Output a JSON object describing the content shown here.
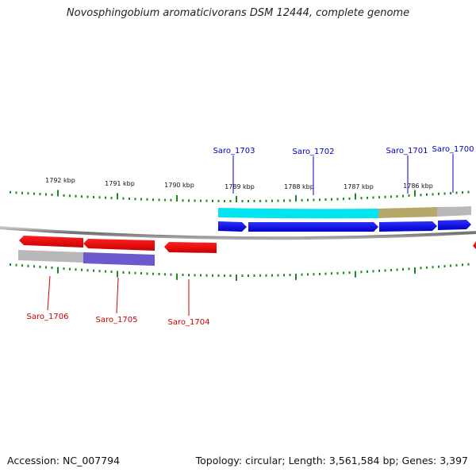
{
  "title": "Novosphingobium aromaticivorans DSM 12444, complete genome",
  "footer": {
    "accession_label": "Accession: NC_007794",
    "topology_label": "Topology: circular",
    "length_label": "Length: 3,561,584 bp",
    "genes_label": "Genes: 3,397"
  },
  "tick_labels": [
    {
      "kbp": 1792,
      "text": "1792 kbp"
    },
    {
      "kbp": 1791,
      "text": "1791 kbp"
    },
    {
      "kbp": 1790,
      "text": "1790 kbp"
    },
    {
      "kbp": 1789,
      "text": "1789 kbp"
    },
    {
      "kbp": 1788,
      "text": "1788 kbp"
    },
    {
      "kbp": 1787,
      "text": "1787 kbp"
    },
    {
      "kbp": 1786,
      "text": "1786 kbp"
    }
  ],
  "genes_forward": [
    {
      "name": "Saro_1703",
      "color": "#0000ee",
      "label_color": "#0000cc"
    },
    {
      "name": "Saro_1702",
      "color": "#0000ee",
      "label_color": "#0000cc"
    },
    {
      "name": "Saro_1701",
      "color": "#0000ee",
      "label_color": "#0000cc"
    },
    {
      "name": "Saro_1700",
      "color": "#0000ee",
      "label_color": "#0000cc"
    }
  ],
  "genes_reverse": [
    {
      "name": "Saro_1706",
      "color": "#ee0000",
      "label_color": "#cc0000"
    },
    {
      "name": "Saro_1705",
      "color": "#ee0000",
      "label_color": "#cc0000"
    },
    {
      "name": "Saro_1704",
      "color": "#ee0000",
      "label_color": "#cc0000"
    }
  ],
  "cog_colors": {
    "cyan": "#00e5f0",
    "olive": "#b5a86a",
    "grey": "#b8b8b8",
    "purple": "#6a5acd",
    "tick": "#1a8a1a",
    "backbone": "#808080"
  }
}
